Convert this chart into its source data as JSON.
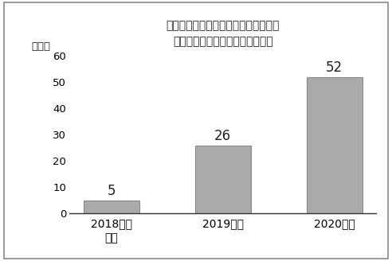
{
  "title_line1": "北陸銀の経営コンサル成約件数の推移",
  "title_line2": "自行型＋協働型で前年度対比２倍",
  "categories": [
    "2018年度\n下期",
    "2019年度",
    "2020年度"
  ],
  "values": [
    5,
    26,
    52
  ],
  "bar_color": "#aaaaaa",
  "bar_edgecolor": "#888888",
  "ylabel_unit": "（件）",
  "ylim": [
    0,
    60
  ],
  "yticks": [
    0,
    10,
    20,
    30,
    40,
    50,
    60
  ],
  "value_labels": [
    "5",
    "26",
    "52"
  ],
  "background_color": "#ffffff",
  "border_color": "#888888",
  "title_fontsize": 12.5,
  "tick_fontsize": 9.5,
  "label_fontsize": 12,
  "unit_fontsize": 9.5
}
